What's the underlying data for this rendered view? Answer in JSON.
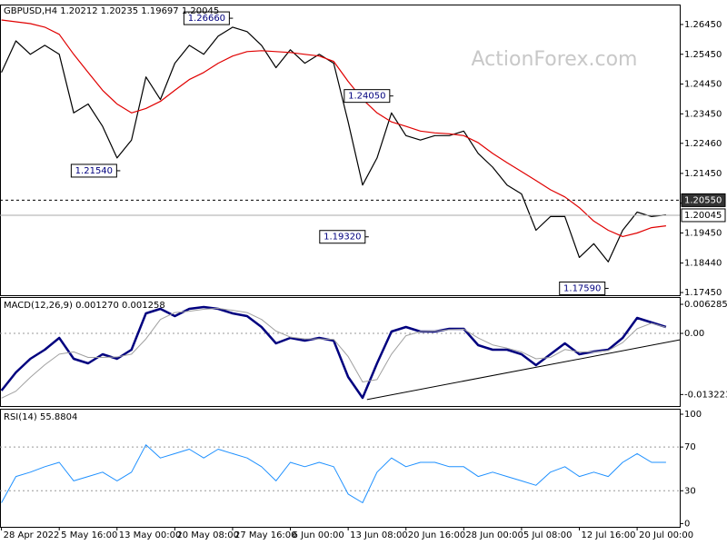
{
  "chart_data": [
    {
      "type": "line",
      "title": "GBPUSD,H4  1.20212 1.20235 1.19697 1.20045",
      "watermark": "ActionForex.com",
      "xlim": [
        -0.1,
        46.95
      ],
      "ylim": [
        1.1736,
        1.2712
      ],
      "yticks": [
        {
          "value": 1.2645,
          "label": "1.26450"
        },
        {
          "value": 1.2545,
          "label": "1.25450"
        },
        {
          "value": 1.2445,
          "label": "1.24450"
        },
        {
          "value": 1.2345,
          "label": "1.23450"
        },
        {
          "value": 1.2246,
          "label": "1.22460"
        },
        {
          "value": 1.2145,
          "label": "1.21450"
        },
        {
          "value": 1.2045,
          "label": "1.20450"
        },
        {
          "value": 1.1945,
          "label": "1.19450"
        },
        {
          "value": 1.1844,
          "label": "1.18440"
        },
        {
          "value": 1.1745,
          "label": "1.17450"
        }
      ],
      "series": [
        {
          "color": "#000000",
          "values": [
            1.2484,
            1.259,
            1.2545,
            1.2575,
            1.2545,
            1.2348,
            1.2378,
            1.2303,
            1.2197,
            1.2257,
            1.2469,
            1.2393,
            1.2515,
            1.2575,
            1.2545,
            1.2606,
            1.2636,
            1.2621,
            1.2575,
            1.25,
            1.256,
            1.2515,
            1.2545,
            1.2515,
            1.2318,
            1.2106,
            1.2197,
            1.2348,
            1.2272,
            1.2257,
            1.2272,
            1.2272,
            1.2287,
            1.2212,
            1.2166,
            1.2106,
            1.2076,
            1.1954,
            1.2,
            1.2,
            1.1863,
            1.1909,
            1.1848,
            1.1954,
            1.2015,
            1.2,
            1.2006
          ]
        },
        {
          "color": "#e00000",
          "values": [
            1.266,
            1.2654,
            1.2648,
            1.2636,
            1.2612,
            1.2545,
            1.2484,
            1.2424,
            1.2378,
            1.2348,
            1.2363,
            1.2387,
            1.2424,
            1.246,
            1.2484,
            1.2515,
            1.2539,
            1.2554,
            1.2557,
            1.2554,
            1.2551,
            1.2545,
            1.2539,
            1.2521,
            1.2454,
            1.2394,
            1.2348,
            1.2318,
            1.2303,
            1.2287,
            1.2281,
            1.2278,
            1.2272,
            1.2248,
            1.2212,
            1.2181,
            1.2151,
            1.2121,
            1.209,
            1.2066,
            1.203,
            1.1985,
            1.1954,
            1.1933,
            1.1945,
            1.1963,
            1.1969
          ]
        }
      ],
      "annotations": [
        {
          "x": 15.9,
          "value": 1.2666,
          "label": "1.26660"
        },
        {
          "x": 8.1,
          "value": 1.2154,
          "label": "1.21540"
        },
        {
          "x": 27.0,
          "value": 1.2405,
          "label": "1.24050"
        },
        {
          "x": 25.3,
          "value": 1.1932,
          "label": "1.19320"
        },
        {
          "x": 41.9,
          "value": 1.1759,
          "label": "1.17590"
        }
      ],
      "price_lines": [
        {
          "value": 1.2055,
          "label": "1.20550",
          "style": "dashed"
        },
        {
          "value": 1.20045,
          "label": "1.20045",
          "style": "solid"
        }
      ]
    },
    {
      "type": "line",
      "title": "MACD(12,26,9) 0.001270 0.001258",
      "xlim": [
        -0.1,
        46.95
      ],
      "ylim": [
        -0.01571,
        0.00786
      ],
      "yticks": [
        0.006285,
        {
          "value": 0,
          "label": "0.00"
        },
        -0.013223
      ],
      "levels": [
        0
      ],
      "series": [
        {
          "color": "#00007f",
          "width": 2.5,
          "values": [
            -0.01237,
            -0.00845,
            -0.0055,
            -0.00354,
            -0.00098,
            -0.0055,
            -0.00648,
            -0.00452,
            -0.0055,
            -0.00354,
            0.00432,
            0.0053,
            0.00373,
            0.0053,
            0.0057,
            0.0053,
            0.00432,
            0.00373,
            0.00137,
            -0.00216,
            -0.00098,
            -0.00157,
            -0.00098,
            -0.00157,
            -0.00943,
            -0.01395,
            -0.00648,
            0.00039,
            0.00137,
            0.00039,
            0.00039,
            0.00098,
            0.00098,
            -0.00255,
            -0.00354,
            -0.00354,
            -0.00452,
            -0.00687,
            -0.00452,
            -0.00216,
            -0.00452,
            -0.00393,
            -0.00354,
            -0.00098,
            0.00334,
            0.00236,
            0.00137
          ]
        },
        {
          "color": "#a0a0a0",
          "width": 1,
          "values": [
            -0.014,
            -0.0125,
            -0.0095,
            -0.0068,
            -0.0045,
            -0.004,
            -0.0052,
            -0.0052,
            -0.0051,
            -0.0045,
            -0.0012,
            0.003,
            0.0045,
            0.0048,
            0.0052,
            0.0054,
            0.005,
            0.0045,
            0.003,
            0.0005,
            -0.0008,
            -0.0012,
            -0.0012,
            -0.0013,
            -0.005,
            -0.0105,
            -0.01,
            -0.0045,
            -0.0005,
            0.0004,
            0.0005,
            0.0008,
            0.0009,
            -0.001,
            -0.0025,
            -0.0032,
            -0.004,
            -0.0055,
            -0.0052,
            -0.0035,
            -0.004,
            -0.004,
            -0.0037,
            -0.002,
            0.001,
            0.0022,
            0.0013
          ]
        }
      ],
      "trendline": {
        "x": [
          25.3,
          46.95
        ],
        "values": [
          -0.0143,
          -0.0014
        ],
        "color": "#000000"
      }
    },
    {
      "type": "line",
      "title": "RSI(14) 55.8804",
      "xlim": [
        -0.1,
        46.95
      ],
      "ylim": [
        -3,
        105
      ],
      "yticks": [
        100,
        70,
        30,
        0
      ],
      "levels": [
        70,
        30
      ],
      "xticks": [
        {
          "value": 0,
          "label": "28 Apr 2022"
        },
        {
          "value": 4,
          "label": "5 May 16:00"
        },
        {
          "value": 8,
          "label": "13 May 00:00"
        },
        {
          "value": 12,
          "label": "20 May 08:00"
        },
        {
          "value": 16,
          "label": "27 May 16:00"
        },
        {
          "value": 20,
          "label": "6 Jun 00:00"
        },
        {
          "value": 24,
          "label": "13 Jun 08:00"
        },
        {
          "value": 28,
          "label": "20 Jun 16:00"
        },
        {
          "value": 32,
          "label": "28 Jun 00:00"
        },
        {
          "value": 36,
          "label": "5 Jul 08:00"
        },
        {
          "value": 40,
          "label": "12 Jul 16:00"
        },
        {
          "value": 44,
          "label": "20 Jul 00:00"
        }
      ],
      "series": [
        {
          "color": "#1e90ff",
          "width": 1,
          "values": [
            19,
            43,
            47,
            52,
            56,
            39,
            43,
            47,
            39,
            47,
            72,
            60,
            64,
            68,
            60,
            68,
            64,
            60,
            52,
            39,
            56,
            52,
            56,
            52,
            27,
            19,
            47,
            60,
            52,
            56,
            56,
            52,
            52,
            43,
            47,
            43,
            39,
            35,
            47,
            52,
            43,
            47,
            43,
            56,
            64,
            56,
            56
          ]
        }
      ]
    }
  ]
}
